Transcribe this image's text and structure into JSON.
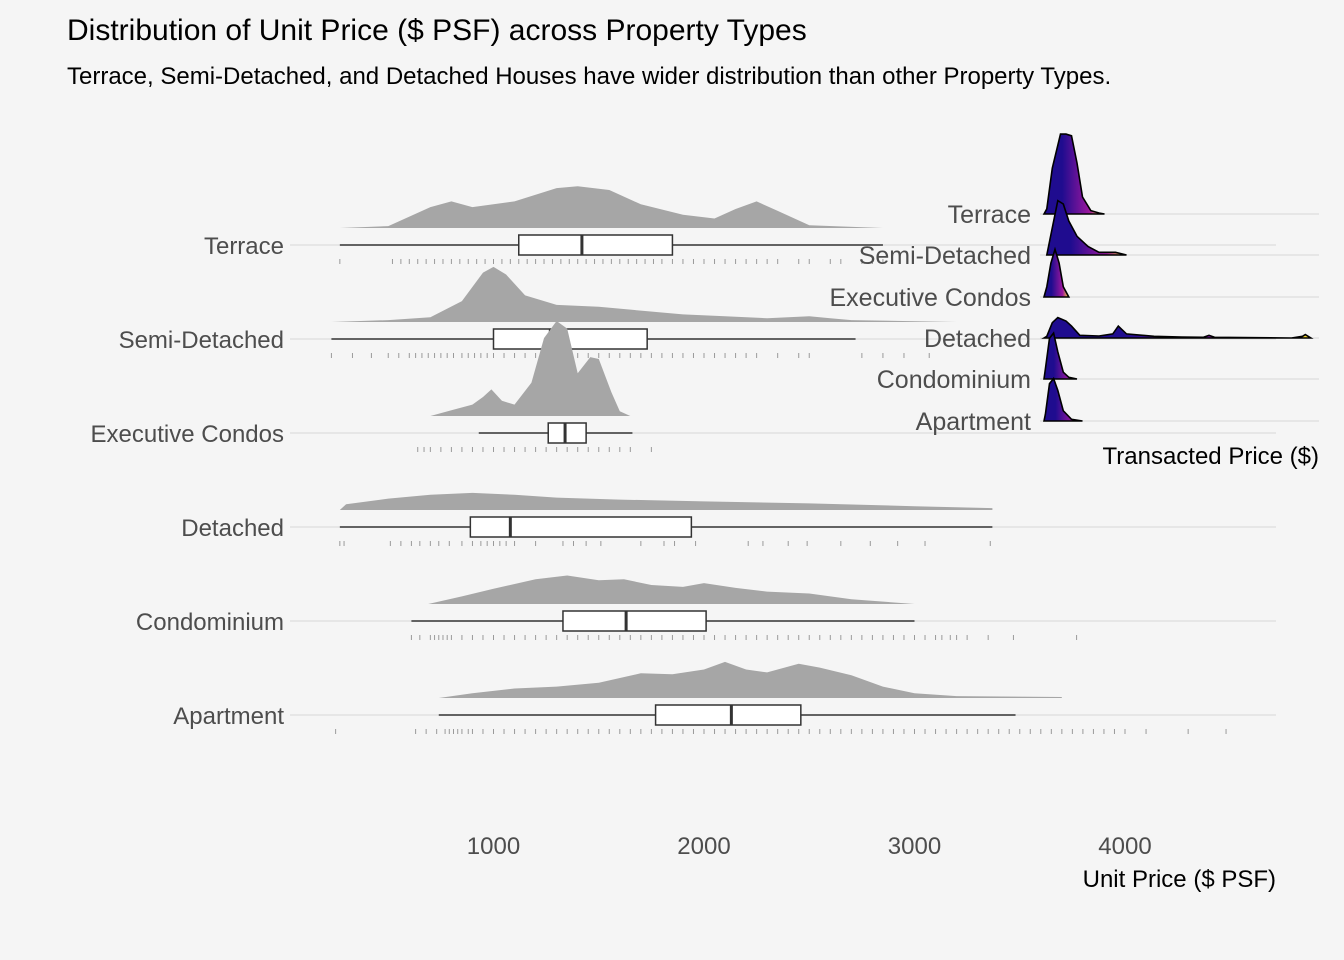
{
  "chart_data": [
    {
      "type": "box",
      "title": "Distribution of Unit Price ($ PSF) across Property Types",
      "subtitle": "Terrace, Semi-Detached, and Detached Houses have wider distribution than other Property Types.",
      "xlabel": "Unit Price ($ PSF)",
      "ylabel": "",
      "xlim": [
        0,
        4800
      ],
      "xticks": [
        1000,
        2000,
        3000,
        4000
      ],
      "grid": true,
      "categories": [
        "Terrace",
        "Semi-Detached",
        "Executive Condos",
        "Detached",
        "Condominium",
        "Apartment"
      ],
      "series": [
        {
          "category": "Terrace",
          "min": 270,
          "q1": 1120,
          "median": 1420,
          "q3": 1850,
          "max": 2850,
          "density": [
            [
              270,
              0
            ],
            [
              500,
              0.02
            ],
            [
              700,
              0.22
            ],
            [
              800,
              0.28
            ],
            [
              900,
              0.22
            ],
            [
              1100,
              0.28
            ],
            [
              1300,
              0.42
            ],
            [
              1400,
              0.44
            ],
            [
              1550,
              0.4
            ],
            [
              1700,
              0.25
            ],
            [
              1900,
              0.14
            ],
            [
              2050,
              0.1
            ],
            [
              2150,
              0.2
            ],
            [
              2250,
              0.28
            ],
            [
              2350,
              0.18
            ],
            [
              2500,
              0.03
            ],
            [
              2850,
              0
            ]
          ],
          "ticks": [
            270,
            520,
            560,
            600,
            640,
            680,
            720,
            760,
            800,
            840,
            880,
            920,
            960,
            1000,
            1040,
            1080,
            1120,
            1160,
            1200,
            1240,
            1280,
            1320,
            1360,
            1400,
            1440,
            1480,
            1520,
            1560,
            1600,
            1640,
            1680,
            1720,
            1760,
            1800,
            1850,
            1900,
            1950,
            2000,
            2050,
            2100,
            2150,
            2200,
            2250,
            2300,
            2350,
            2450,
            2500,
            2600,
            2650,
            2750,
            2800,
            2850
          ]
        },
        {
          "category": "Semi-Detached",
          "min": 230,
          "q1": 1000,
          "median": 1270,
          "q3": 1730,
          "max": 2720,
          "density": [
            [
              230,
              0
            ],
            [
              500,
              0.02
            ],
            [
              700,
              0.05
            ],
            [
              850,
              0.22
            ],
            [
              950,
              0.52
            ],
            [
              1000,
              0.58
            ],
            [
              1060,
              0.5
            ],
            [
              1150,
              0.28
            ],
            [
              1300,
              0.18
            ],
            [
              1500,
              0.16
            ],
            [
              1700,
              0.12
            ],
            [
              1900,
              0.08
            ],
            [
              2100,
              0.06
            ],
            [
              2300,
              0.04
            ],
            [
              2500,
              0.06
            ],
            [
              2600,
              0.04
            ],
            [
              2700,
              0.02
            ],
            [
              3200,
              0
            ]
          ],
          "ticks": [
            230,
            330,
            420,
            500,
            550,
            600,
            630,
            660,
            690,
            720,
            750,
            780,
            810,
            850,
            880,
            910,
            940,
            970,
            1000,
            1050,
            1100,
            1150,
            1200,
            1250,
            1300,
            1350,
            1400,
            1450,
            1500,
            1550,
            1600,
            1650,
            1700,
            1750,
            1800,
            1850,
            1900,
            1950,
            2000,
            2050,
            2100,
            2150,
            2200,
            2250,
            2350,
            2450,
            2500,
            2750,
            2850,
            2950,
            3070
          ]
        },
        {
          "category": "Executive Condos",
          "min": 930,
          "q1": 1260,
          "median": 1340,
          "q3": 1440,
          "max": 1660,
          "density": [
            [
              700,
              0
            ],
            [
              800,
              0.06
            ],
            [
              900,
              0.12
            ],
            [
              950,
              0.2
            ],
            [
              990,
              0.28
            ],
            [
              1040,
              0.16
            ],
            [
              1100,
              0.12
            ],
            [
              1180,
              0.35
            ],
            [
              1240,
              0.82
            ],
            [
              1300,
              1.0
            ],
            [
              1350,
              0.92
            ],
            [
              1400,
              0.45
            ],
            [
              1460,
              0.62
            ],
            [
              1500,
              0.6
            ],
            [
              1560,
              0.25
            ],
            [
              1600,
              0.05
            ],
            [
              1650,
              0
            ]
          ],
          "ticks": [
            640,
            670,
            700,
            750,
            800,
            850,
            900,
            950,
            1000,
            1050,
            1100,
            1150,
            1200,
            1250,
            1300,
            1350,
            1400,
            1450,
            1500,
            1550,
            1600,
            1650,
            1750
          ]
        },
        {
          "category": "Detached",
          "min": 270,
          "q1": 890,
          "median": 1080,
          "q3": 1940,
          "max": 3370,
          "density": [
            [
              270,
              0
            ],
            [
              300,
              0.06
            ],
            [
              500,
              0.12
            ],
            [
              700,
              0.16
            ],
            [
              900,
              0.18
            ],
            [
              1100,
              0.16
            ],
            [
              1300,
              0.13
            ],
            [
              1600,
              0.11
            ],
            [
              2000,
              0.09
            ],
            [
              2500,
              0.07
            ],
            [
              3000,
              0.04
            ],
            [
              3370,
              0.02
            ],
            [
              3370,
              0
            ]
          ],
          "ticks": [
            270,
            290,
            510,
            560,
            610,
            650,
            700,
            740,
            790,
            850,
            900,
            940,
            970,
            1000,
            1030,
            1060,
            1100,
            1200,
            1330,
            1380,
            1440,
            1510,
            1700,
            1810,
            1860,
            1960,
            2210,
            2280,
            2400,
            2490,
            2650,
            2790,
            2920,
            3050,
            3360
          ]
        },
        {
          "category": "Condominium",
          "min": 610,
          "q1": 1330,
          "median": 1630,
          "q3": 2010,
          "max": 3000,
          "density": [
            [
              690,
              0
            ],
            [
              850,
              0.08
            ],
            [
              1000,
              0.16
            ],
            [
              1200,
              0.26
            ],
            [
              1350,
              0.3
            ],
            [
              1500,
              0.25
            ],
            [
              1620,
              0.26
            ],
            [
              1750,
              0.2
            ],
            [
              1900,
              0.18
            ],
            [
              2000,
              0.22
            ],
            [
              2150,
              0.17
            ],
            [
              2300,
              0.13
            ],
            [
              2500,
              0.11
            ],
            [
              2700,
              0.05
            ],
            [
              3000,
              0
            ]
          ],
          "ticks": [
            610,
            650,
            700,
            720,
            740,
            760,
            780,
            800,
            850,
            900,
            950,
            1000,
            1050,
            1100,
            1150,
            1200,
            1250,
            1300,
            1350,
            1400,
            1450,
            1500,
            1550,
            1600,
            1650,
            1700,
            1750,
            1800,
            1850,
            1900,
            1950,
            2000,
            2050,
            2100,
            2150,
            2200,
            2250,
            2300,
            2350,
            2400,
            2450,
            2500,
            2550,
            2600,
            2650,
            2700,
            2750,
            2800,
            2850,
            2900,
            2950,
            3000,
            3050,
            3100,
            3130,
            3170,
            3200,
            3250,
            3350,
            3470,
            3770
          ]
        },
        {
          "category": "Apartment",
          "min": 740,
          "q1": 1770,
          "median": 2130,
          "q3": 2460,
          "max": 3480,
          "density": [
            [
              740,
              0
            ],
            [
              900,
              0.05
            ],
            [
              1100,
              0.1
            ],
            [
              1300,
              0.12
            ],
            [
              1500,
              0.16
            ],
            [
              1700,
              0.26
            ],
            [
              1850,
              0.25
            ],
            [
              2000,
              0.3
            ],
            [
              2100,
              0.38
            ],
            [
              2200,
              0.3
            ],
            [
              2300,
              0.27
            ],
            [
              2450,
              0.36
            ],
            [
              2550,
              0.32
            ],
            [
              2700,
              0.24
            ],
            [
              2850,
              0.12
            ],
            [
              3000,
              0.05
            ],
            [
              3200,
              0.02
            ],
            [
              3700,
              0.01
            ],
            [
              3700,
              0
            ]
          ],
          "ticks": [
            250,
            630,
            680,
            730,
            770,
            790,
            810,
            830,
            850,
            880,
            900,
            950,
            1000,
            1050,
            1100,
            1150,
            1200,
            1250,
            1300,
            1350,
            1400,
            1450,
            1500,
            1550,
            1600,
            1650,
            1700,
            1750,
            1800,
            1850,
            1900,
            1950,
            2000,
            2050,
            2100,
            2150,
            2200,
            2250,
            2300,
            2350,
            2400,
            2450,
            2500,
            2550,
            2600,
            2650,
            2700,
            2750,
            2800,
            2850,
            2900,
            2950,
            3000,
            3050,
            3100,
            3150,
            3200,
            3250,
            3300,
            3350,
            3400,
            3450,
            3500,
            3550,
            3600,
            3650,
            3700,
            3750,
            3800,
            3850,
            3900,
            3950,
            4000,
            4100,
            4300,
            4480
          ]
        }
      ]
    },
    {
      "type": "ridgeline",
      "title": "",
      "xlabel": "Transacted Price ($)",
      "categories": [
        "Terrace",
        "Semi-Detached",
        "Executive Condos",
        "Detached",
        "Condominium",
        "Apartment"
      ],
      "x_range": [
        0,
        1
      ],
      "colors": {
        "low": "#1f0c8f",
        "mid": "#9c179e",
        "high": "#fbe725"
      },
      "series": [
        {
          "name": "Terrace",
          "curve": [
            [
              0,
              0
            ],
            [
              0.01,
              0.15
            ],
            [
              0.03,
              1.35
            ],
            [
              0.06,
              2.35
            ],
            [
              0.08,
              2.35
            ],
            [
              0.1,
              2.3
            ],
            [
              0.12,
              1.5
            ],
            [
              0.14,
              0.5
            ],
            [
              0.17,
              0.1
            ],
            [
              0.2,
              0.03
            ],
            [
              0.22,
              0
            ]
          ]
        },
        {
          "name": "Semi-Detached",
          "curve": [
            [
              0.01,
              0
            ],
            [
              0.03,
              0.8
            ],
            [
              0.05,
              1.6
            ],
            [
              0.07,
              1.5
            ],
            [
              0.09,
              1.0
            ],
            [
              0.12,
              0.55
            ],
            [
              0.16,
              0.25
            ],
            [
              0.2,
              0.08
            ],
            [
              0.26,
              0.08
            ],
            [
              0.3,
              0
            ]
          ]
        },
        {
          "name": "Executive Condos",
          "curve": [
            [
              0,
              0
            ],
            [
              0.01,
              0.3
            ],
            [
              0.025,
              1.0
            ],
            [
              0.04,
              1.4
            ],
            [
              0.055,
              1.0
            ],
            [
              0.07,
              0.3
            ],
            [
              0.09,
              0
            ]
          ]
        },
        {
          "name": "Detached",
          "curve": [
            [
              0,
              0
            ],
            [
              0.01,
              0.05
            ],
            [
              0.03,
              0.45
            ],
            [
              0.05,
              0.6
            ],
            [
              0.08,
              0.5
            ],
            [
              0.1,
              0.35
            ],
            [
              0.13,
              0.08
            ],
            [
              0.2,
              0.06
            ],
            [
              0.25,
              0.12
            ],
            [
              0.27,
              0.35
            ],
            [
              0.3,
              0.12
            ],
            [
              0.4,
              0.05
            ],
            [
              0.5,
              0.03
            ],
            [
              0.58,
              0.02
            ],
            [
              0.6,
              0.08
            ],
            [
              0.62,
              0.02
            ],
            [
              0.9,
              0
            ],
            [
              0.94,
              0.05
            ],
            [
              0.95,
              0.1
            ],
            [
              0.97,
              0
            ]
          ]
        },
        {
          "name": "Condominium",
          "curve": [
            [
              0,
              0
            ],
            [
              0.005,
              0.3
            ],
            [
              0.02,
              1.2
            ],
            [
              0.035,
              1.35
            ],
            [
              0.05,
              0.8
            ],
            [
              0.07,
              0.2
            ],
            [
              0.09,
              0.05
            ],
            [
              0.12,
              0
            ]
          ]
        },
        {
          "name": "Apartment",
          "curve": [
            [
              0,
              0
            ],
            [
              0.005,
              0.2
            ],
            [
              0.02,
              1.1
            ],
            [
              0.035,
              1.25
            ],
            [
              0.05,
              0.9
            ],
            [
              0.07,
              0.3
            ],
            [
              0.1,
              0.05
            ],
            [
              0.14,
              0
            ]
          ]
        }
      ]
    }
  ]
}
